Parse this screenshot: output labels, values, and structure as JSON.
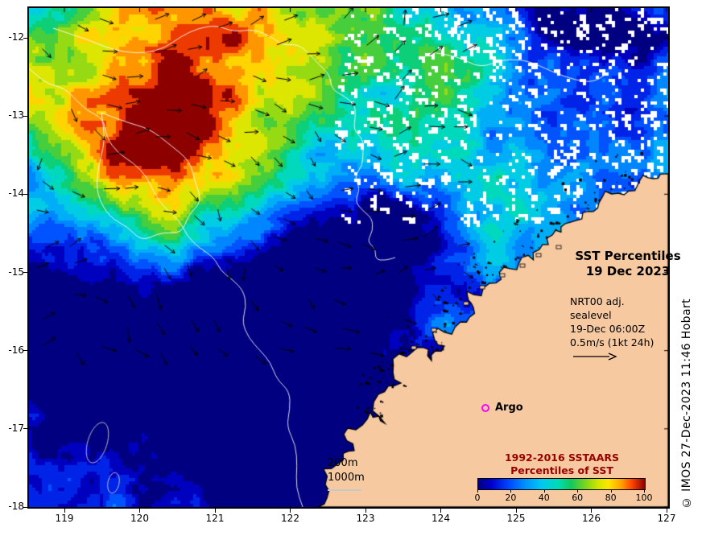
{
  "figure": {
    "title_line1": "SST Percentiles",
    "title_line2": "19 Dec 2023",
    "nrt_line1": "NRT00 adj. sealevel",
    "nrt_line2": "19-Dec 06:00Z",
    "nrt_line3": "0.5m/s (1kt 24h)",
    "argo_label": "Argo",
    "depth_200": "200m",
    "depth_1000": "1000m",
    "legend_line1": "1992-2016 SSTAARS",
    "legend_line2": "Percentiles of SST",
    "credit": "© IMOS 27-Dec-2023 11:46 Hobart"
  },
  "axes": {
    "x_tick_labels": [
      "119",
      "120",
      "121",
      "122",
      "123",
      "124",
      "125",
      "126",
      "127"
    ],
    "y_tick_labels": [
      "-12",
      "-13",
      "-14",
      "-15",
      "-16",
      "-17",
      "-18"
    ]
  },
  "colorbar": {
    "tick_labels": [
      "0",
      "20",
      "40",
      "60",
      "80",
      "100"
    ],
    "stops": [
      [
        0.0,
        "#000080"
      ],
      [
        0.08,
        "#0000cc"
      ],
      [
        0.18,
        "#0044ff"
      ],
      [
        0.28,
        "#0090ff"
      ],
      [
        0.38,
        "#00c8f0"
      ],
      [
        0.48,
        "#00dcb4"
      ],
      [
        0.56,
        "#14c85a"
      ],
      [
        0.64,
        "#78d41e"
      ],
      [
        0.72,
        "#d2e600"
      ],
      [
        0.78,
        "#ffe600"
      ],
      [
        0.86,
        "#ffa000"
      ],
      [
        0.92,
        "#ff4600"
      ],
      [
        1.0,
        "#8c0000"
      ]
    ]
  },
  "colors": {
    "land": "#f6c9a1",
    "coast": "#000000",
    "contour_white": "rgba(255,255,255,0.85)",
    "contour_gray": "rgba(205,205,205,0.9)",
    "arrow": "#000000",
    "argo_marker": "#ff00ff",
    "legend_text": "#990000",
    "cloud": "#ffffff",
    "background": "#ffffff"
  },
  "chart_data": {
    "type": "heatmap",
    "title": "SST Percentiles 19 Dec 2023",
    "x_ticks": [
      119,
      120,
      121,
      122,
      123,
      124,
      125,
      126,
      127
    ],
    "y_ticks": [
      -12,
      -13,
      -14,
      -15,
      -16,
      -17,
      -18
    ],
    "x_range_approx": [
      118.55,
      127.05
    ],
    "y_range_approx": [
      -18.0,
      -11.6
    ],
    "colorbar": {
      "ticks": [
        0,
        20,
        40,
        60,
        80,
        100
      ],
      "range": [
        0,
        100
      ],
      "label": "Percentiles of SST",
      "dataset": "1992-2016 SSTAARS"
    },
    "overlays": [
      {
        "name": "velocity-vectors",
        "source": "NRT00 adj. sealevel 19-Dec 06:00Z",
        "scale": "0.5m/s (1kt 24h)"
      },
      {
        "name": "argo-float",
        "marker": "magenta open circle",
        "label": "Argo"
      },
      {
        "name": "bathymetry-contours",
        "labels": [
          "200m",
          "1000m"
        ]
      }
    ],
    "legend_position": "bottom-right",
    "grid": false
  }
}
